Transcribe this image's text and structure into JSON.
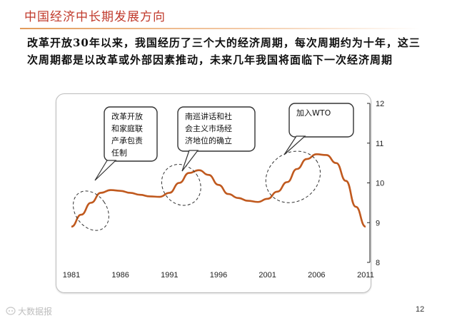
{
  "slide": {
    "title": "中国经济中长期发展方向",
    "summary": "改革开放30年以来，我国经历了三个大的经济周期，每次周期约为十年，这三次周期都是以改革或外部因素推动，未来几年我国将面临下一次经济周期",
    "page_number": "12",
    "watermark": "大数据报"
  },
  "colors": {
    "title": "#c0392b",
    "line": "#c0591e",
    "rule": "#e29b5a"
  },
  "chart_data": {
    "type": "line",
    "title": "",
    "xlabel": "",
    "ylabel": "",
    "x_ticks": [
      "1981",
      "1986",
      "1991",
      "1996",
      "2001",
      "2006",
      "2011"
    ],
    "y_ticks": [
      "8",
      "9",
      "10",
      "11",
      "12"
    ],
    "xlim": [
      1981,
      2011
    ],
    "ylim": [
      8,
      12
    ],
    "y_axis_side": "right",
    "grid": false,
    "series": [
      {
        "x": [
          1981,
          1982,
          1983,
          1984,
          1985,
          1986,
          1987,
          1988,
          1989,
          1990,
          1991,
          1992,
          1993,
          1994,
          1995,
          1996,
          1997,
          1998,
          1999,
          2000,
          2001,
          2002,
          2003,
          2004,
          2005,
          2006,
          2007,
          2008,
          2009,
          2010,
          2011
        ],
        "values": [
          8.9,
          9.2,
          9.5,
          9.75,
          9.82,
          9.8,
          9.75,
          9.7,
          9.66,
          9.65,
          9.75,
          10.0,
          10.25,
          10.32,
          10.2,
          9.95,
          9.72,
          9.62,
          9.55,
          9.52,
          9.6,
          9.78,
          10.02,
          10.35,
          10.6,
          10.72,
          10.7,
          10.5,
          10.05,
          9.4,
          8.9
        ]
      }
    ],
    "annotations": [
      {
        "label": "改革开放和家庭联产承包责任制",
        "lines": [
          "改革开放",
          "和家庭联",
          "产承包责",
          "任制"
        ]
      },
      {
        "label": "南巡讲话和社会主义市场经济地位的确立",
        "lines": [
          "南巡讲话和社",
          "会主义市场经",
          "济地位的确立"
        ]
      },
      {
        "label": "加入WTO",
        "lines": [
          "加入WTO"
        ]
      }
    ]
  }
}
